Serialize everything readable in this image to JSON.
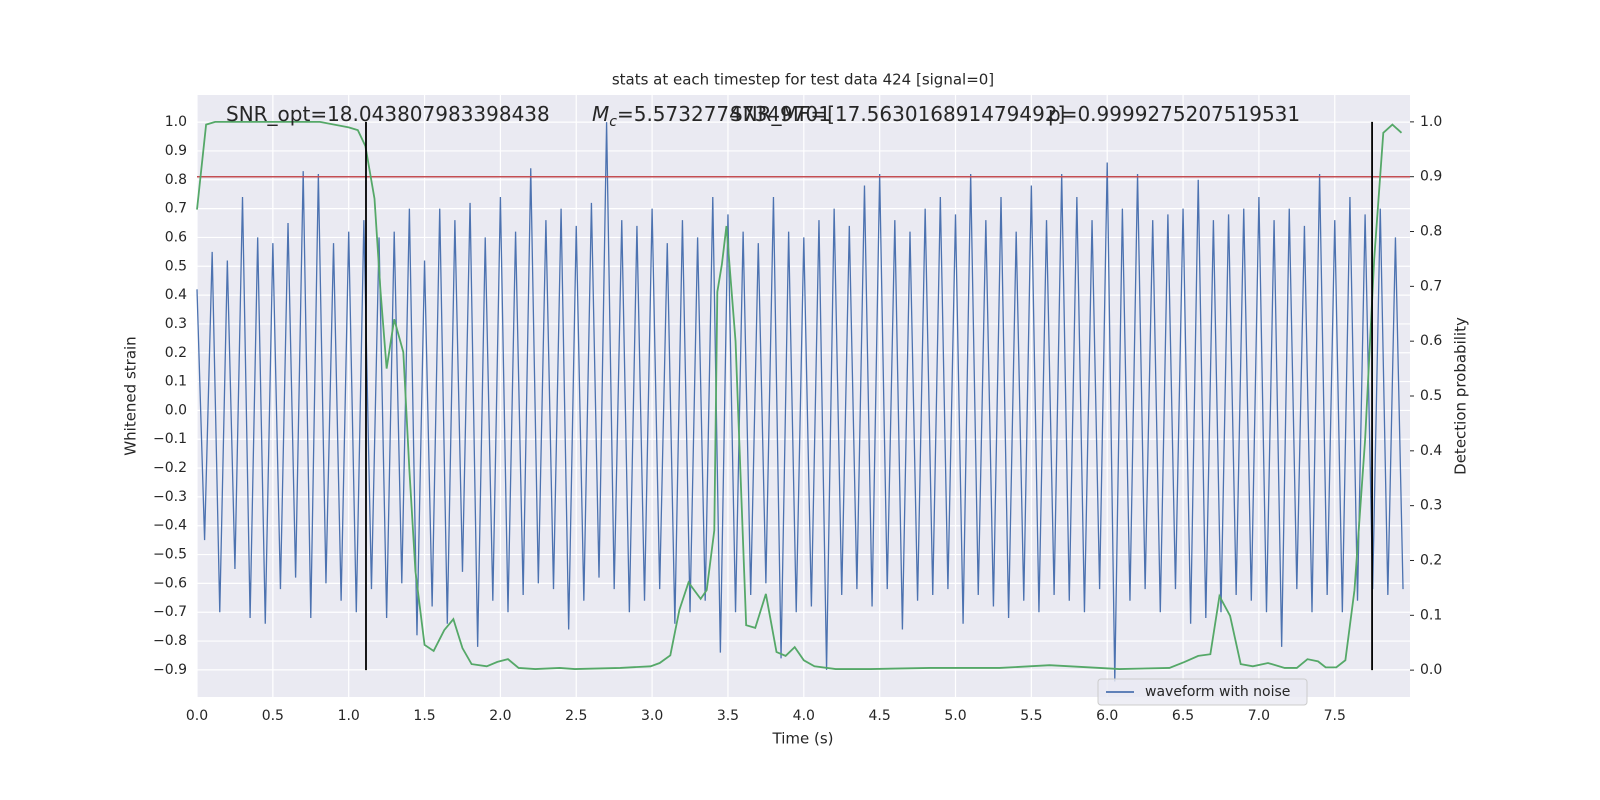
{
  "chart_data": {
    "type": "line",
    "title": "stats at each timestep for test data 424 [signal=0]",
    "xlabel": "Time (s)",
    "ylabel": "Whitened strain",
    "y2label": "Detection probability",
    "annotations": {
      "snr_opt": "SNR_opt=18.043807983398438",
      "mc_symbol": "M",
      "mc_subscript": "c",
      "mc_value": "=5.57327747349701",
      "snr_mf": "SNR_MF=[17.563016891479492]",
      "p": "p=0.9999275207519531"
    },
    "grid": true,
    "legend": "lower right",
    "xlim": [
      0,
      7.996
    ],
    "ylim": [
      -0.994,
      1.094
    ],
    "y2lim": [
      -0.049,
      1.049
    ],
    "xticks": [
      {
        "value": 0,
        "label": "0.0"
      },
      0.5,
      {
        "value": 1,
        "label": "1.0"
      },
      1.5,
      {
        "value": 2,
        "label": "2.0"
      },
      2.5,
      {
        "value": 3,
        "label": "3.0"
      },
      3.5,
      {
        "value": 4,
        "label": "4.0"
      },
      4.5,
      {
        "value": 5,
        "label": "5.0"
      },
      5.5,
      {
        "value": 6,
        "label": "6.0"
      },
      6.5,
      {
        "value": 7,
        "label": "7.0"
      },
      7.5
    ],
    "yticks": [
      {
        "value": 1,
        "label": "1.0"
      },
      0.9,
      0.8,
      0.7,
      0.6,
      0.5,
      0.4,
      0.3,
      0.2,
      0.1,
      {
        "value": 0,
        "label": "0.0"
      },
      {
        "value": -0.1,
        "label": "−0.1"
      },
      {
        "value": -0.2,
        "label": "−0.2"
      },
      {
        "value": -0.3,
        "label": "−0.3"
      },
      {
        "value": -0.4,
        "label": "−0.4"
      },
      {
        "value": -0.5,
        "label": "−0.5"
      },
      {
        "value": -0.6,
        "label": "−0.6"
      },
      {
        "value": -0.7,
        "label": "−0.7"
      },
      {
        "value": -0.8,
        "label": "−0.8"
      },
      {
        "value": -0.9,
        "label": "−0.9"
      }
    ],
    "y2ticks": [
      {
        "value": 0,
        "label": "0.0"
      },
      0.1,
      0.2,
      0.3,
      0.4,
      0.5,
      0.6,
      0.7,
      0.8,
      0.9,
      {
        "value": 1,
        "label": "1.0"
      }
    ],
    "series": [
      {
        "name": "waveform with noise",
        "color": "#4c72b0",
        "x": [
          0,
          0.05,
          0.1,
          0.15,
          0.2,
          0.25,
          0.3,
          0.35,
          0.4,
          0.45,
          0.5,
          0.55,
          0.6,
          0.65,
          0.7,
          0.75,
          0.8,
          0.85,
          0.9,
          0.95,
          1,
          1.05,
          1.1,
          1.15,
          1.2,
          1.25,
          1.3,
          1.35,
          1.4,
          1.45,
          1.5,
          1.55,
          1.6,
          1.65,
          1.7,
          1.75,
          1.8,
          1.85,
          1.9,
          1.95,
          2,
          2.05,
          2.1,
          2.15,
          2.2,
          2.25,
          2.3,
          2.35,
          2.4,
          2.45,
          2.5,
          2.55,
          2.6,
          2.65,
          2.7,
          2.75,
          2.8,
          2.85,
          2.9,
          2.95,
          3,
          3.05,
          3.1,
          3.15,
          3.2,
          3.25,
          3.3,
          3.35,
          3.4,
          3.45,
          3.5,
          3.55,
          3.6,
          3.65,
          3.7,
          3.75,
          3.8,
          3.85,
          3.9,
          3.95,
          4,
          4.05,
          4.1,
          4.15,
          4.2,
          4.25,
          4.3,
          4.35,
          4.4,
          4.45,
          4.5,
          4.55,
          4.6,
          4.65,
          4.7,
          4.75,
          4.8,
          4.85,
          4.9,
          4.95,
          5,
          5.05,
          5.1,
          5.15,
          5.2,
          5.25,
          5.3,
          5.35,
          5.4,
          5.45,
          5.5,
          5.55,
          5.6,
          5.65,
          5.7,
          5.75,
          5.8,
          5.85,
          5.9,
          5.95,
          6,
          6.05,
          6.1,
          6.15,
          6.2,
          6.25,
          6.3,
          6.35,
          6.4,
          6.45,
          6.5,
          6.55,
          6.6,
          6.65,
          6.7,
          6.75,
          6.8,
          6.85,
          6.9,
          6.95,
          7,
          7.05,
          7.1,
          7.15,
          7.2,
          7.25,
          7.3,
          7.35,
          7.4,
          7.45,
          7.5,
          7.55,
          7.6,
          7.65,
          7.7,
          7.75,
          7.8,
          7.85,
          7.9,
          7.95
        ],
        "values": [
          0.42,
          -0.45,
          0.55,
          -0.7,
          0.52,
          -0.55,
          0.74,
          -0.72,
          0.6,
          -0.74,
          0.58,
          -0.62,
          0.65,
          -0.58,
          0.83,
          -0.72,
          0.82,
          -0.6,
          0.58,
          -0.66,
          0.62,
          -0.7,
          0.66,
          -0.62,
          0.6,
          -0.72,
          0.62,
          -0.6,
          0.7,
          -0.78,
          0.52,
          -0.68,
          0.7,
          -0.74,
          0.66,
          -0.56,
          0.72,
          -0.82,
          0.6,
          -0.66,
          0.74,
          -0.7,
          0.62,
          -0.64,
          0.84,
          -0.6,
          0.66,
          -0.62,
          0.7,
          -0.76,
          0.64,
          -0.66,
          0.72,
          -0.58,
          1.0,
          -0.62,
          0.66,
          -0.7,
          0.64,
          -0.66,
          0.7,
          -0.62,
          0.58,
          -0.74,
          0.66,
          -0.7,
          0.6,
          -0.66,
          0.74,
          -0.84,
          0.68,
          -0.7,
          0.62,
          -0.64,
          0.58,
          -0.6,
          0.74,
          -0.86,
          0.62,
          -0.7,
          0.6,
          -0.68,
          0.66,
          -0.9,
          0.7,
          -0.64,
          0.64,
          -0.62,
          0.78,
          -0.68,
          0.82,
          -0.62,
          0.66,
          -0.76,
          0.62,
          -0.66,
          0.7,
          -0.64,
          0.74,
          -0.62,
          0.68,
          -0.74,
          0.82,
          -0.64,
          0.66,
          -0.68,
          0.74,
          -0.72,
          0.62,
          -0.66,
          0.78,
          -0.7,
          0.66,
          -0.64,
          0.82,
          -0.66,
          0.74,
          -0.7,
          0.66,
          -0.62,
          0.86,
          -0.94,
          0.7,
          -0.66,
          0.82,
          -0.62,
          0.66,
          -0.7,
          0.68,
          -0.62,
          0.7,
          -0.74,
          0.8,
          -0.72,
          0.66,
          -0.7,
          0.68,
          -0.64,
          0.7,
          -0.66,
          0.74,
          -0.7,
          0.66,
          -0.82,
          0.7,
          -0.62,
          0.64,
          -0.7,
          0.82,
          -0.64,
          0.66,
          -0.7,
          0.74,
          -0.66,
          0.68,
          -0.62,
          0.7,
          -0.64,
          0.6,
          -0.62
        ]
      }
    ],
    "probability_line": {
      "color": "#55a868",
      "axis": "y2",
      "x": [
        0,
        0.06,
        0.12,
        0.81,
        1.0,
        1.06,
        1.11,
        1.17,
        1.21,
        1.25,
        1.3,
        1.36,
        1.4,
        1.44,
        1.5,
        1.56,
        1.63,
        1.69,
        1.75,
        1.81,
        1.91,
        1.98,
        2.05,
        2.12,
        2.23,
        2.39,
        2.49,
        2.79,
        2.99,
        3.05,
        3.12,
        3.18,
        3.24,
        3.32,
        3.36,
        3.41,
        3.43,
        3.46,
        3.49,
        3.55,
        3.62,
        3.68,
        3.75,
        3.82,
        3.88,
        3.94,
        4.0,
        4.07,
        4.21,
        4.44,
        4.83,
        5.1,
        5.29,
        5.62,
        5.95,
        6.08,
        6.41,
        6.51,
        6.6,
        6.68,
        6.74,
        6.81,
        6.88,
        6.96,
        7.06,
        7.17,
        7.25,
        7.32,
        7.39,
        7.44,
        7.51,
        7.57,
        7.63,
        7.7,
        7.76,
        7.82,
        7.88,
        7.94
      ],
      "values": [
        0.84,
        0.995,
        1.0,
        1.0,
        0.99,
        0.985,
        0.956,
        0.86,
        0.69,
        0.55,
        0.64,
        0.58,
        0.365,
        0.18,
        0.046,
        0.035,
        0.073,
        0.093,
        0.04,
        0.011,
        0.007,
        0.015,
        0.02,
        0.004,
        0.002,
        0.004,
        0.002,
        0.004,
        0.007,
        0.013,
        0.027,
        0.11,
        0.16,
        0.13,
        0.146,
        0.255,
        0.69,
        0.74,
        0.81,
        0.6,
        0.082,
        0.077,
        0.139,
        0.033,
        0.026,
        0.042,
        0.018,
        0.007,
        0.002,
        0.002,
        0.004,
        0.004,
        0.004,
        0.009,
        0.004,
        0.002,
        0.004,
        0.015,
        0.026,
        0.029,
        0.135,
        0.099,
        0.011,
        0.007,
        0.013,
        0.004,
        0.004,
        0.02,
        0.016,
        0.005,
        0.005,
        0.018,
        0.146,
        0.42,
        0.75,
        0.98,
        0.995,
        0.98
      ]
    },
    "threshold": {
      "value": 0.9,
      "axis": "y2",
      "color": "#c44e52"
    },
    "vlines": {
      "x": [
        1.114,
        7.746
      ],
      "color": "#000000"
    }
  }
}
